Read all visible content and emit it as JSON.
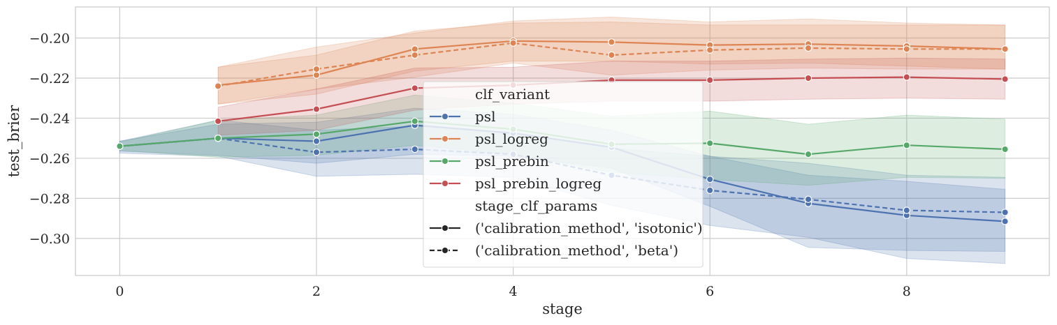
{
  "chart_data": {
    "type": "line",
    "title": "",
    "xlabel": "stage",
    "ylabel": "test_brier",
    "xlim": [
      -0.45,
      9.45
    ],
    "ylim": [
      -0.3185,
      -0.1845
    ],
    "xticks": [
      0,
      2,
      4,
      6,
      8
    ],
    "xtick_labels": [
      "0",
      "2",
      "4",
      "6",
      "8"
    ],
    "yticks": [
      -0.3,
      -0.28,
      -0.26,
      -0.24,
      -0.22,
      -0.2
    ],
    "ytick_labels": [
      "−0.30",
      "−0.28",
      "−0.26",
      "−0.24",
      "−0.22",
      "−0.20"
    ],
    "grid": true,
    "legend": {
      "placement": "center",
      "hue_title": "clf_variant",
      "style_title": "stage_clf_params",
      "hue_entries": [
        "psl",
        "psl_logreg",
        "psl_prebin",
        "psl_prebin_logreg"
      ],
      "style_entries": [
        "('calibration_method', 'isotonic')",
        "('calibration_method', 'beta')"
      ]
    },
    "colors": {
      "psl": "#4c72b0",
      "psl_logreg": "#dd8452",
      "psl_prebin": "#55a868",
      "psl_prebin_logreg": "#c44e52",
      "legend_style": "#262626"
    },
    "series": [
      {
        "name": "psl",
        "style": "isotonic",
        "color": "#4c72b0",
        "x": [
          0,
          1,
          2,
          3,
          4,
          5,
          6,
          7,
          8,
          9
        ],
        "y": [
          -0.254,
          -0.25,
          -0.2515,
          -0.2435,
          -0.2475,
          -0.2545,
          -0.2705,
          -0.2825,
          -0.2885,
          -0.2915
        ],
        "ci_low": [
          -0.2565,
          -0.2585,
          -0.2625,
          -0.258,
          -0.259,
          -0.265,
          -0.284,
          -0.3045,
          -0.306,
          -0.3065
        ],
        "ci_high": [
          -0.2515,
          -0.243,
          -0.242,
          -0.235,
          -0.238,
          -0.246,
          -0.259,
          -0.2685,
          -0.2715,
          -0.2755
        ]
      },
      {
        "name": "psl",
        "style": "beta",
        "color": "#4c72b0",
        "x": [
          0,
          1,
          2,
          3,
          4,
          5,
          6,
          7,
          8,
          9
        ],
        "y": [
          -0.254,
          -0.25,
          -0.257,
          -0.2555,
          -0.258,
          -0.2685,
          -0.276,
          -0.2805,
          -0.286,
          -0.287
        ],
        "ci_low": [
          -0.2575,
          -0.259,
          -0.269,
          -0.268,
          -0.2695,
          -0.2835,
          -0.2935,
          -0.2995,
          -0.31,
          -0.3125
        ],
        "ci_high": [
          -0.2515,
          -0.241,
          -0.246,
          -0.244,
          -0.247,
          -0.255,
          -0.259,
          -0.2625,
          -0.2685,
          -0.2695
        ]
      },
      {
        "name": "psl_logreg",
        "style": "isotonic",
        "color": "#dd8452",
        "x": [
          1,
          2,
          3,
          4,
          5,
          6,
          7,
          8,
          9
        ],
        "y": [
          -0.2235,
          -0.2185,
          -0.2055,
          -0.2015,
          -0.202,
          -0.2035,
          -0.203,
          -0.204,
          -0.2055
        ],
        "ci_low": [
          -0.233,
          -0.228,
          -0.2165,
          -0.2115,
          -0.2115,
          -0.213,
          -0.2125,
          -0.214,
          -0.2155
        ],
        "ci_high": [
          -0.2145,
          -0.2085,
          -0.1965,
          -0.1925,
          -0.192,
          -0.1935,
          -0.1935,
          -0.1935,
          -0.1935
        ]
      },
      {
        "name": "psl_logreg",
        "style": "beta",
        "color": "#dd8452",
        "x": [
          1,
          2,
          3,
          4,
          5,
          6,
          7,
          8,
          9
        ],
        "y": [
          -0.224,
          -0.2155,
          -0.2085,
          -0.2025,
          -0.2085,
          -0.206,
          -0.205,
          -0.2055,
          -0.2055
        ],
        "ci_low": [
          -0.233,
          -0.2255,
          -0.2195,
          -0.2125,
          -0.2185,
          -0.216,
          -0.215,
          -0.2155,
          -0.2155
        ],
        "ci_high": [
          -0.2145,
          -0.2045,
          -0.1975,
          -0.1915,
          -0.1895,
          -0.192,
          -0.1905,
          -0.1925,
          -0.1935
        ]
      },
      {
        "name": "psl_prebin",
        "style": "isotonic",
        "color": "#55a868",
        "x": [
          0,
          1,
          2,
          3,
          4,
          5,
          6,
          7,
          8,
          9
        ],
        "y": [
          -0.254,
          -0.25,
          -0.248,
          -0.2415,
          -0.2455,
          -0.253,
          -0.2525,
          -0.258,
          -0.2535,
          -0.2555
        ],
        "ci_low": [
          -0.256,
          -0.2595,
          -0.2585,
          -0.2535,
          -0.258,
          -0.267,
          -0.2705,
          -0.2735,
          -0.2695,
          -0.27
        ],
        "ci_high": [
          -0.252,
          -0.241,
          -0.2385,
          -0.2285,
          -0.2325,
          -0.239,
          -0.2365,
          -0.243,
          -0.2385,
          -0.2405
        ]
      },
      {
        "name": "psl_prebin_logreg",
        "style": "isotonic",
        "color": "#c44e52",
        "x": [
          1,
          2,
          3,
          4,
          5,
          6,
          7,
          8,
          9
        ],
        "y": [
          -0.2415,
          -0.2355,
          -0.225,
          -0.2235,
          -0.221,
          -0.221,
          -0.22,
          -0.2195,
          -0.2205
        ],
        "ci_low": [
          -0.2485,
          -0.246,
          -0.236,
          -0.233,
          -0.2315,
          -0.2315,
          -0.2305,
          -0.23,
          -0.2305
        ],
        "ci_high": [
          -0.2345,
          -0.2255,
          -0.215,
          -0.2145,
          -0.2115,
          -0.2115,
          -0.2105,
          -0.21,
          -0.2105
        ]
      }
    ]
  }
}
